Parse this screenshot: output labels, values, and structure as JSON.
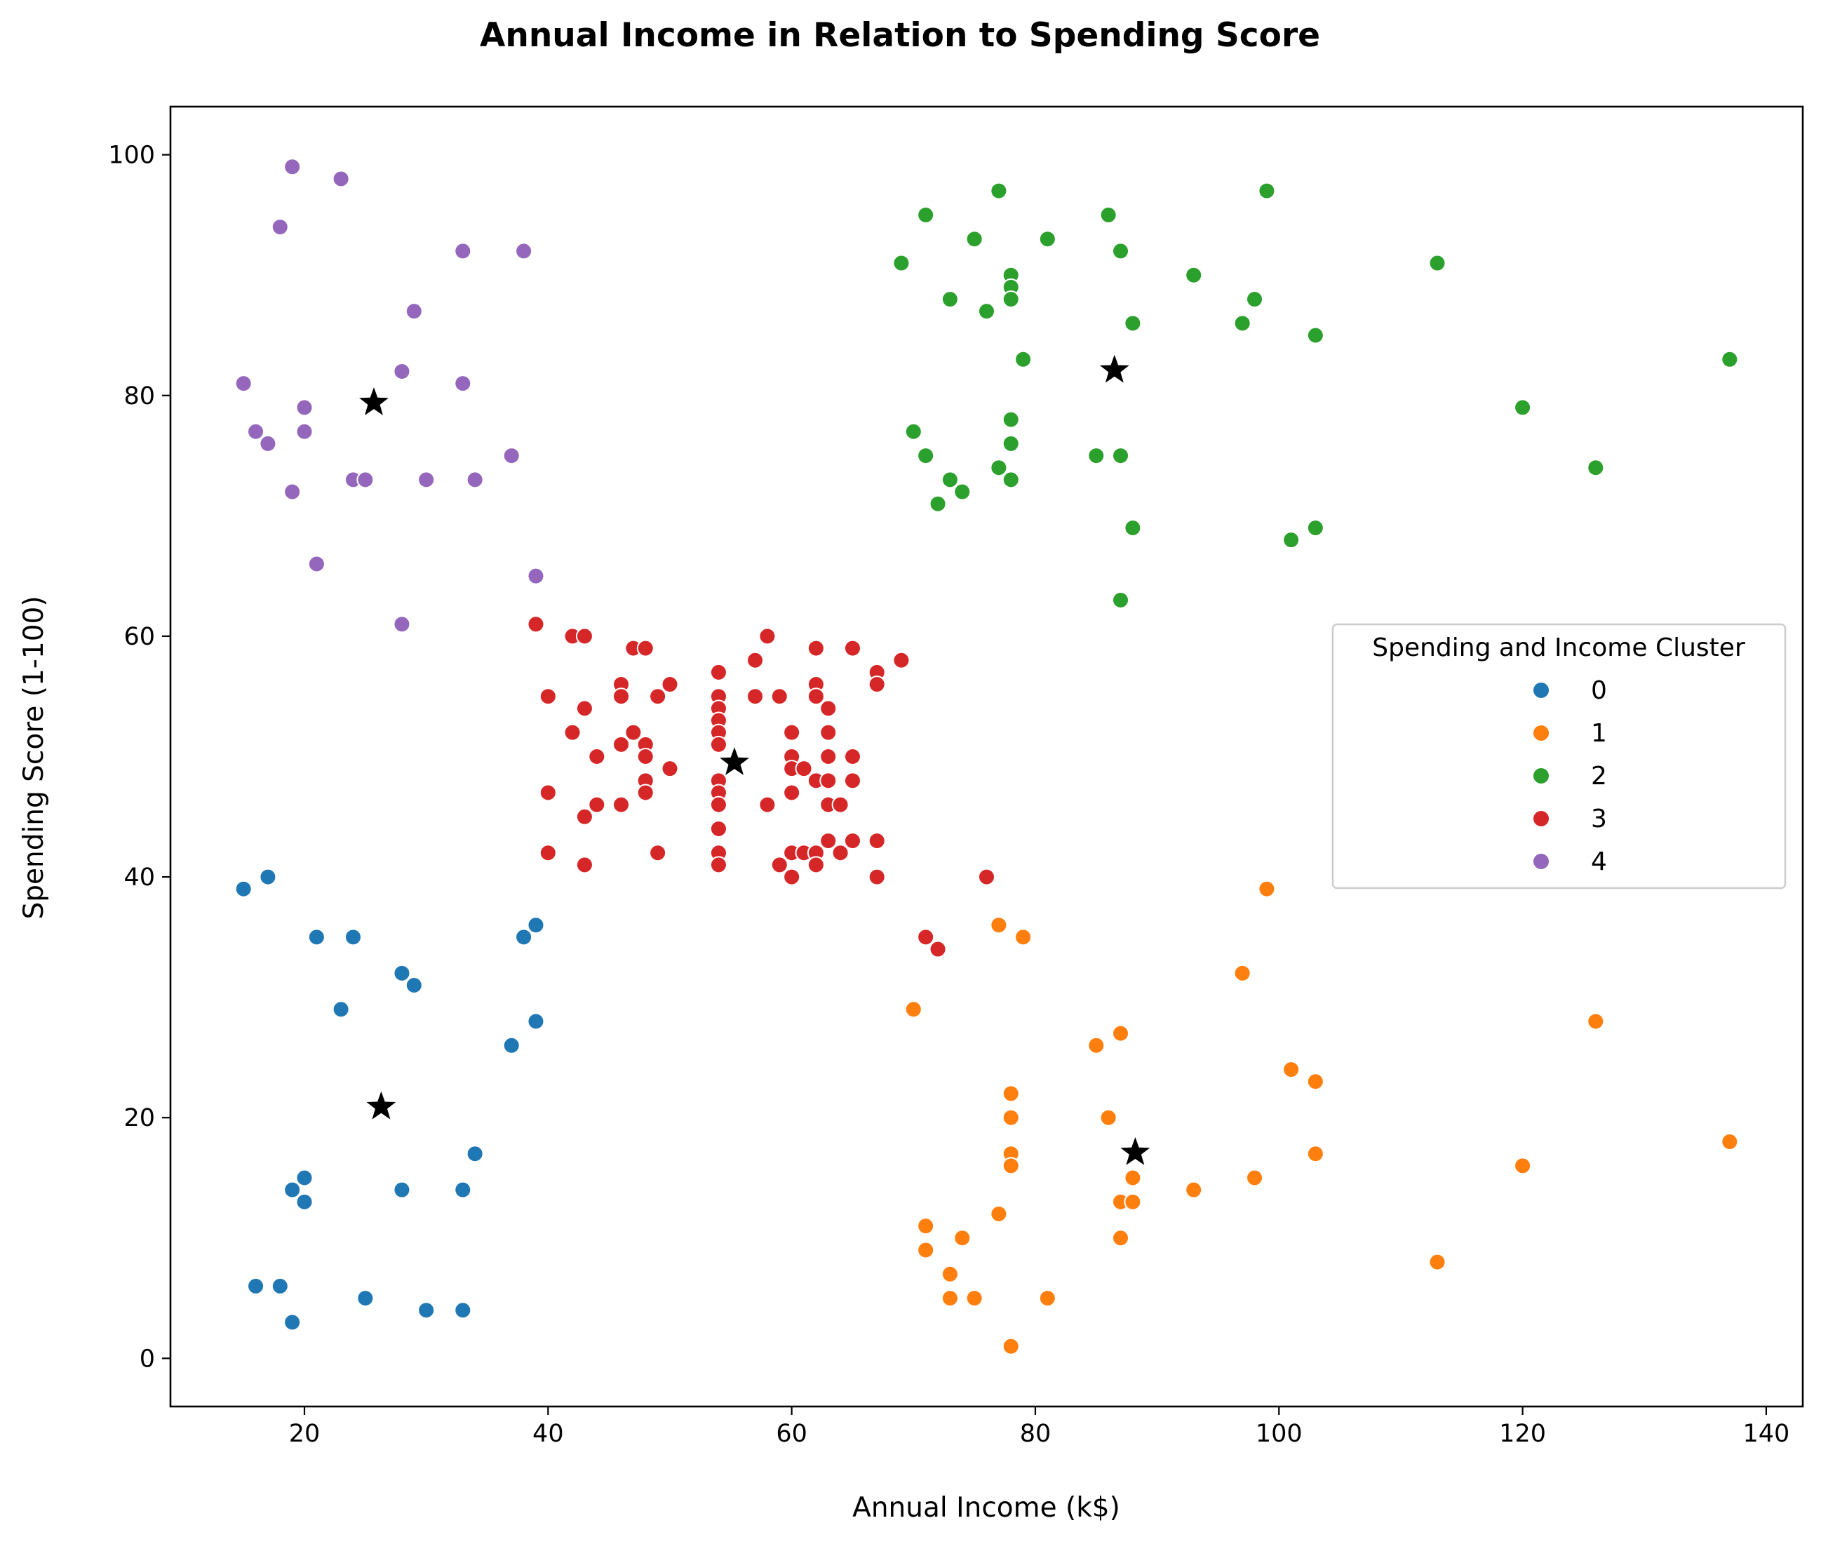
{
  "chart_data": {
    "type": "scatter",
    "title": "Annual Income in Relation to Spending Score",
    "xlabel": "Annual Income (k$)",
    "ylabel": "Spending Score (1-100)",
    "xlim": [
      9,
      143
    ],
    "ylim": [
      -4,
      104
    ],
    "xticks": [
      20,
      40,
      60,
      80,
      100,
      120,
      140
    ],
    "yticks": [
      0,
      20,
      40,
      60,
      80,
      100
    ],
    "grid": false,
    "legend": {
      "title": "Spending and Income Cluster",
      "placement": "center-right"
    },
    "series": [
      {
        "name": "0",
        "color": "#1f77b4",
        "points": [
          [
            15,
            39
          ],
          [
            16,
            6
          ],
          [
            17,
            40
          ],
          [
            18,
            6
          ],
          [
            19,
            3
          ],
          [
            19,
            14
          ],
          [
            20,
            15
          ],
          [
            20,
            13
          ],
          [
            21,
            35
          ],
          [
            23,
            29
          ],
          [
            24,
            35
          ],
          [
            25,
            5
          ],
          [
            28,
            32
          ],
          [
            28,
            14
          ],
          [
            29,
            31
          ],
          [
            30,
            4
          ],
          [
            33,
            4
          ],
          [
            33,
            14
          ],
          [
            34,
            17
          ],
          [
            37,
            26
          ],
          [
            38,
            35
          ],
          [
            39,
            36
          ],
          [
            39,
            28
          ]
        ]
      },
      {
        "name": "1",
        "color": "#ff7f0e",
        "points": [
          [
            70,
            29
          ],
          [
            71,
            11
          ],
          [
            71,
            9
          ],
          [
            73,
            7
          ],
          [
            73,
            5
          ],
          [
            74,
            10
          ],
          [
            75,
            5
          ],
          [
            77,
            36
          ],
          [
            77,
            12
          ],
          [
            78,
            22
          ],
          [
            78,
            20
          ],
          [
            78,
            17
          ],
          [
            78,
            16
          ],
          [
            78,
            1
          ],
          [
            79,
            35
          ],
          [
            81,
            5
          ],
          [
            85,
            26
          ],
          [
            86,
            20
          ],
          [
            87,
            27
          ],
          [
            87,
            13
          ],
          [
            87,
            10
          ],
          [
            88,
            15
          ],
          [
            88,
            13
          ],
          [
            93,
            14
          ],
          [
            97,
            32
          ],
          [
            98,
            15
          ],
          [
            99,
            39
          ],
          [
            101,
            24
          ],
          [
            103,
            23
          ],
          [
            103,
            17
          ],
          [
            113,
            8
          ],
          [
            120,
            16
          ],
          [
            126,
            28
          ],
          [
            137,
            18
          ]
        ]
      },
      {
        "name": "2",
        "color": "#2ca02c",
        "points": [
          [
            69,
            91
          ],
          [
            70,
            77
          ],
          [
            71,
            95
          ],
          [
            71,
            75
          ],
          [
            72,
            71
          ],
          [
            73,
            88
          ],
          [
            73,
            73
          ],
          [
            74,
            72
          ],
          [
            75,
            93
          ],
          [
            76,
            87
          ],
          [
            77,
            97
          ],
          [
            77,
            74
          ],
          [
            78,
            90
          ],
          [
            78,
            89
          ],
          [
            78,
            88
          ],
          [
            78,
            78
          ],
          [
            78,
            76
          ],
          [
            78,
            73
          ],
          [
            79,
            83
          ],
          [
            81,
            93
          ],
          [
            85,
            75
          ],
          [
            86,
            95
          ],
          [
            87,
            92
          ],
          [
            87,
            75
          ],
          [
            87,
            63
          ],
          [
            88,
            86
          ],
          [
            88,
            69
          ],
          [
            93,
            90
          ],
          [
            97,
            86
          ],
          [
            98,
            88
          ],
          [
            99,
            97
          ],
          [
            101,
            68
          ],
          [
            103,
            85
          ],
          [
            103,
            69
          ],
          [
            113,
            91
          ],
          [
            120,
            79
          ],
          [
            126,
            74
          ],
          [
            137,
            83
          ]
        ]
      },
      {
        "name": "3",
        "color": "#d62728",
        "points": [
          [
            39,
            61
          ],
          [
            40,
            55
          ],
          [
            40,
            47
          ],
          [
            40,
            42
          ],
          [
            42,
            60
          ],
          [
            42,
            52
          ],
          [
            43,
            60
          ],
          [
            43,
            54
          ],
          [
            43,
            45
          ],
          [
            43,
            41
          ],
          [
            44,
            50
          ],
          [
            44,
            46
          ],
          [
            46,
            56
          ],
          [
            46,
            55
          ],
          [
            46,
            51
          ],
          [
            46,
            46
          ],
          [
            47,
            59
          ],
          [
            47,
            52
          ],
          [
            48,
            59
          ],
          [
            48,
            51
          ],
          [
            48,
            50
          ],
          [
            48,
            48
          ],
          [
            48,
            47
          ],
          [
            49,
            55
          ],
          [
            49,
            42
          ],
          [
            50,
            56
          ],
          [
            50,
            49
          ],
          [
            54,
            57
          ],
          [
            54,
            55
          ],
          [
            54,
            54
          ],
          [
            54,
            53
          ],
          [
            54,
            52
          ],
          [
            54,
            51
          ],
          [
            54,
            48
          ],
          [
            54,
            47
          ],
          [
            54,
            46
          ],
          [
            54,
            44
          ],
          [
            54,
            42
          ],
          [
            54,
            41
          ],
          [
            57,
            58
          ],
          [
            57,
            55
          ],
          [
            58,
            60
          ],
          [
            58,
            46
          ],
          [
            59,
            55
          ],
          [
            59,
            41
          ],
          [
            60,
            52
          ],
          [
            60,
            50
          ],
          [
            60,
            49
          ],
          [
            60,
            47
          ],
          [
            60,
            42
          ],
          [
            60,
            40
          ],
          [
            61,
            49
          ],
          [
            61,
            42
          ],
          [
            62,
            59
          ],
          [
            62,
            56
          ],
          [
            62,
            55
          ],
          [
            62,
            48
          ],
          [
            62,
            42
          ],
          [
            62,
            41
          ],
          [
            63,
            54
          ],
          [
            63,
            52
          ],
          [
            63,
            50
          ],
          [
            63,
            48
          ],
          [
            63,
            46
          ],
          [
            63,
            43
          ],
          [
            64,
            46
          ],
          [
            64,
            42
          ],
          [
            65,
            59
          ],
          [
            65,
            50
          ],
          [
            65,
            48
          ],
          [
            65,
            43
          ],
          [
            67,
            57
          ],
          [
            67,
            56
          ],
          [
            67,
            43
          ],
          [
            67,
            40
          ],
          [
            69,
            58
          ],
          [
            71,
            35
          ],
          [
            72,
            34
          ],
          [
            76,
            40
          ]
        ]
      },
      {
        "name": "4",
        "color": "#9467bd",
        "points": [
          [
            15,
            81
          ],
          [
            16,
            77
          ],
          [
            17,
            76
          ],
          [
            18,
            94
          ],
          [
            19,
            99
          ],
          [
            19,
            72
          ],
          [
            20,
            79
          ],
          [
            20,
            77
          ],
          [
            21,
            66
          ],
          [
            23,
            98
          ],
          [
            24,
            73
          ],
          [
            25,
            73
          ],
          [
            28,
            82
          ],
          [
            28,
            61
          ],
          [
            29,
            87
          ],
          [
            30,
            73
          ],
          [
            33,
            92
          ],
          [
            33,
            81
          ],
          [
            34,
            73
          ],
          [
            37,
            75
          ],
          [
            38,
            92
          ],
          [
            39,
            65
          ]
        ]
      }
    ],
    "centroids": {
      "color": "#000000",
      "marker": "star",
      "points": [
        [
          26.3,
          20.9
        ],
        [
          88.2,
          17.1
        ],
        [
          86.5,
          82.1
        ],
        [
          55.3,
          49.5
        ],
        [
          25.7,
          79.4
        ]
      ]
    }
  }
}
